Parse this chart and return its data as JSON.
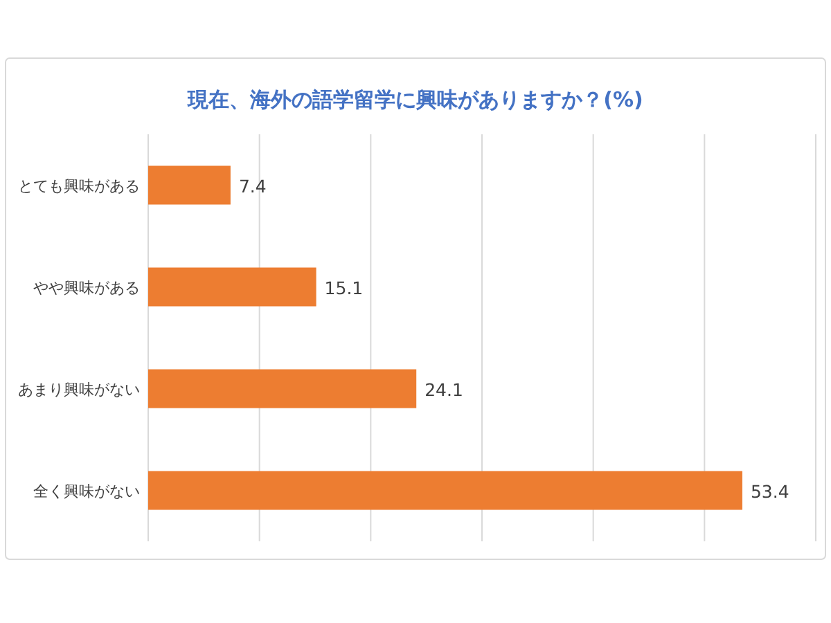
{
  "chart_data": {
    "type": "bar",
    "orientation": "horizontal",
    "title": "現在、海外の語学留学に興味がありますか？(%)",
    "categories": [
      "とても興味がある",
      "やや興味がある",
      "あまり興味がない",
      "全く興味がない"
    ],
    "values": [
      7.4,
      15.1,
      24.1,
      53.4
    ],
    "color": "#ed7d31",
    "xlim": [
      0,
      60
    ],
    "xticks": [
      {
        "value": 0,
        "label": null
      },
      {
        "value": 10,
        "label": null
      },
      {
        "value": 20,
        "label": null
      },
      {
        "value": 30,
        "label": null
      },
      {
        "value": 40,
        "label": null
      },
      {
        "value": 50,
        "label": null
      },
      {
        "value": 60,
        "label": null
      }
    ],
    "grid": "x",
    "data_labels": true
  }
}
